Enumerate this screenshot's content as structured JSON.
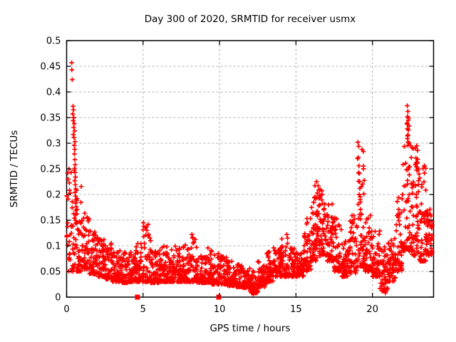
{
  "chart_data": {
    "type": "scatter",
    "title": "Day 300 of 2020, SRMTID for receiver usmx",
    "xlabel": "GPS time / hours",
    "ylabel": "SRMTID / TECUs",
    "xlim": [
      0,
      24
    ],
    "ylim": [
      0,
      0.5
    ],
    "x_ticks": [
      0,
      5,
      10,
      15,
      20
    ],
    "x_tick_labels": [
      "0",
      "5",
      "10",
      "15",
      "20"
    ],
    "y_ticks": [
      0,
      0.05,
      0.1,
      0.15,
      0.2,
      0.25,
      0.3,
      0.35,
      0.4,
      0.45,
      0.5
    ],
    "y_tick_labels": [
      "0",
      "0.05",
      "0.1",
      "0.15",
      "0.2",
      "0.25",
      "0.3",
      "0.35",
      "0.4",
      "0.45",
      "0.5"
    ],
    "grid": true,
    "legend": "none",
    "marker": "plus",
    "series_color": "#ff0000",
    "grid_color": "#b0b0b0",
    "seed": 300,
    "envelope_bins": [
      [
        0.0,
        0.5,
        0.05,
        0.25,
        40,
        1.6
      ],
      [
        0.5,
        1.0,
        0.05,
        0.22,
        52,
        1.9
      ],
      [
        1.0,
        1.5,
        0.055,
        0.17,
        52,
        1.9
      ],
      [
        1.5,
        2.0,
        0.045,
        0.135,
        52,
        2.0
      ],
      [
        2.0,
        2.5,
        0.04,
        0.12,
        52,
        2.1
      ],
      [
        2.5,
        3.0,
        0.035,
        0.105,
        52,
        2.1
      ],
      [
        3.0,
        3.5,
        0.03,
        0.095,
        52,
        2.1
      ],
      [
        3.5,
        4.0,
        0.028,
        0.088,
        52,
        2.1
      ],
      [
        4.0,
        4.5,
        0.03,
        0.09,
        52,
        2.1
      ],
      [
        4.5,
        5.0,
        0.03,
        0.11,
        52,
        2.2
      ],
      [
        5.0,
        5.5,
        0.03,
        0.145,
        52,
        2.6
      ],
      [
        5.5,
        6.0,
        0.028,
        0.09,
        52,
        2.2
      ],
      [
        6.0,
        6.5,
        0.03,
        0.1,
        52,
        2.3
      ],
      [
        6.5,
        7.0,
        0.03,
        0.105,
        52,
        2.3
      ],
      [
        7.0,
        7.5,
        0.03,
        0.1,
        52,
        2.2
      ],
      [
        7.5,
        8.0,
        0.03,
        0.11,
        52,
        2.3
      ],
      [
        8.0,
        8.5,
        0.03,
        0.125,
        52,
        2.5
      ],
      [
        8.5,
        9.0,
        0.028,
        0.09,
        52,
        2.2
      ],
      [
        9.0,
        9.5,
        0.028,
        0.1,
        52,
        2.3
      ],
      [
        9.5,
        10.0,
        0.025,
        0.085,
        42,
        2.2
      ],
      [
        10.0,
        10.5,
        0.025,
        0.08,
        42,
        2.2
      ],
      [
        10.5,
        11.0,
        0.022,
        0.07,
        52,
        2.1
      ],
      [
        11.0,
        11.5,
        0.02,
        0.065,
        52,
        2.1
      ],
      [
        11.5,
        12.0,
        0.018,
        0.06,
        52,
        2.0
      ],
      [
        12.0,
        12.5,
        0.008,
        0.055,
        52,
        1.9
      ],
      [
        12.5,
        13.0,
        0.02,
        0.07,
        52,
        2.0
      ],
      [
        13.0,
        13.5,
        0.03,
        0.09,
        52,
        2.1
      ],
      [
        13.5,
        14.0,
        0.04,
        0.1,
        52,
        2.0
      ],
      [
        14.0,
        14.5,
        0.04,
        0.12,
        52,
        2.1
      ],
      [
        14.5,
        15.0,
        0.04,
        0.1,
        52,
        2.0
      ],
      [
        15.0,
        15.5,
        0.04,
        0.095,
        52,
        1.9
      ],
      [
        15.5,
        16.0,
        0.05,
        0.16,
        52,
        1.9
      ],
      [
        16.0,
        16.5,
        0.07,
        0.225,
        56,
        1.7
      ],
      [
        16.5,
        17.0,
        0.08,
        0.21,
        56,
        1.7
      ],
      [
        17.0,
        17.5,
        0.07,
        0.185,
        52,
        1.8
      ],
      [
        17.5,
        18.0,
        0.05,
        0.155,
        52,
        1.9
      ],
      [
        18.0,
        18.5,
        0.04,
        0.11,
        52,
        1.9
      ],
      [
        18.5,
        19.0,
        0.045,
        0.16,
        48,
        2.1
      ],
      [
        19.0,
        19.5,
        0.06,
        0.3,
        52,
        2.4
      ],
      [
        19.5,
        20.0,
        0.05,
        0.16,
        52,
        1.9
      ],
      [
        20.0,
        20.5,
        0.04,
        0.13,
        52,
        1.9
      ],
      [
        20.5,
        21.0,
        0.012,
        0.1,
        44,
        1.7
      ],
      [
        21.0,
        21.5,
        0.03,
        0.12,
        52,
        1.8
      ],
      [
        21.5,
        22.0,
        0.05,
        0.2,
        52,
        2.1
      ],
      [
        22.0,
        22.5,
        0.09,
        0.375,
        58,
        2.1
      ],
      [
        22.5,
        23.0,
        0.08,
        0.3,
        58,
        1.9
      ],
      [
        23.0,
        23.5,
        0.07,
        0.26,
        52,
        1.8
      ],
      [
        23.5,
        23.95,
        0.08,
        0.175,
        48,
        1.7
      ]
    ],
    "outlier_points": [
      [
        0.33,
        0.457
      ],
      [
        0.34,
        0.443
      ],
      [
        0.37,
        0.424
      ],
      [
        0.42,
        0.372
      ],
      [
        0.45,
        0.365
      ],
      [
        0.4,
        0.357
      ],
      [
        0.47,
        0.35
      ],
      [
        0.43,
        0.344
      ],
      [
        0.5,
        0.338
      ],
      [
        0.46,
        0.331
      ],
      [
        0.52,
        0.324
      ],
      [
        0.44,
        0.317
      ],
      [
        0.48,
        0.311
      ],
      [
        0.55,
        0.303
      ],
      [
        0.5,
        0.296
      ],
      [
        0.53,
        0.288
      ],
      [
        0.51,
        0.279
      ],
      [
        0.54,
        0.268
      ],
      [
        0.56,
        0.258
      ],
      [
        0.52,
        0.251
      ],
      [
        0.55,
        0.243
      ],
      [
        0.58,
        0.234
      ],
      [
        0.53,
        0.227
      ],
      [
        0.57,
        0.219
      ],
      [
        0.6,
        0.211
      ],
      [
        0.55,
        0.204
      ],
      [
        0.58,
        0.197
      ],
      [
        0.62,
        0.19
      ],
      [
        0.59,
        0.183
      ],
      [
        0.63,
        0.176
      ],
      [
        0.61,
        0.169
      ],
      [
        5.02,
        0.145
      ],
      [
        5.05,
        0.138
      ],
      [
        5.0,
        0.131
      ],
      [
        8.2,
        0.122
      ],
      [
        8.25,
        0.115
      ],
      [
        14.4,
        0.122
      ],
      [
        14.45,
        0.115
      ],
      [
        16.35,
        0.225
      ],
      [
        16.45,
        0.217
      ],
      [
        16.5,
        0.209
      ],
      [
        16.4,
        0.203
      ],
      [
        16.6,
        0.198
      ],
      [
        16.3,
        0.192
      ],
      [
        19.05,
        0.302
      ],
      [
        19.1,
        0.294
      ],
      [
        19.08,
        0.272
      ],
      [
        19.12,
        0.256
      ],
      [
        19.15,
        0.241
      ],
      [
        19.1,
        0.226
      ],
      [
        19.18,
        0.212
      ],
      [
        19.13,
        0.2
      ],
      [
        19.2,
        0.19
      ],
      [
        19.07,
        0.181
      ],
      [
        19.22,
        0.171
      ],
      [
        19.16,
        0.161
      ],
      [
        22.28,
        0.373
      ],
      [
        22.32,
        0.362
      ],
      [
        22.3,
        0.352
      ],
      [
        22.35,
        0.345
      ],
      [
        22.26,
        0.339
      ],
      [
        22.33,
        0.316
      ],
      [
        22.29,
        0.309
      ],
      [
        22.4,
        0.3
      ],
      [
        22.9,
        0.295
      ],
      [
        22.95,
        0.286
      ],
      [
        22.85,
        0.271
      ],
      [
        22.92,
        0.263
      ],
      [
        22.88,
        0.254
      ],
      [
        23.0,
        0.248
      ],
      [
        23.05,
        0.24
      ],
      [
        23.1,
        0.232
      ],
      [
        20.75,
        0.012
      ],
      [
        20.85,
        0.008
      ],
      [
        12.2,
        0.006
      ],
      [
        12.3,
        0.01
      ],
      [
        12.45,
        0.013
      ]
    ],
    "square_markers": [
      [
        4.63,
        0
      ],
      [
        9.95,
        0
      ]
    ]
  }
}
